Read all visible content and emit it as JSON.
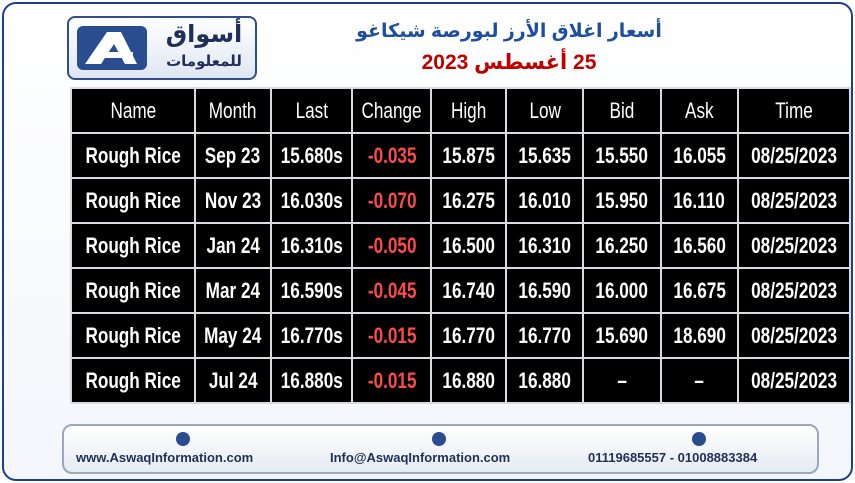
{
  "header": {
    "logo_name": "أسواق",
    "logo_sub": "للمعلومات",
    "title": "أسعار اغلاق الأرز لبورصة شيكاغو",
    "date": "25 أغسطس 2023"
  },
  "table": {
    "columns": [
      "Name",
      "Month",
      "Last",
      "Change",
      "High",
      "Low",
      "Bid",
      "Ask",
      "Time"
    ],
    "rows": [
      [
        "Rough Rice",
        "Sep 23",
        "15.680s",
        "-0.035",
        "15.875",
        "15.635",
        "15.550",
        "16.055",
        "08/25/2023"
      ],
      [
        "Rough Rice",
        "Nov 23",
        "16.030s",
        "-0.070",
        "16.275",
        "16.010",
        "15.950",
        "16.110",
        "08/25/2023"
      ],
      [
        "Rough Rice",
        "Jan 24",
        "16.310s",
        "-0.050",
        "16.500",
        "16.310",
        "16.250",
        "16.560",
        "08/25/2023"
      ],
      [
        "Rough Rice",
        "Mar 24",
        "16.590s",
        "-0.045",
        "16.740",
        "16.590",
        "16.000",
        "16.675",
        "08/25/2023"
      ],
      [
        "Rough Rice",
        "May 24",
        "16.770s",
        "-0.015",
        "16.770",
        "16.770",
        "15.690",
        "18.690",
        "08/25/2023"
      ],
      [
        "Rough Rice",
        "Jul 24",
        "16.880s",
        "-0.015",
        "16.880",
        "16.880",
        "–",
        "–",
        "08/25/2023"
      ]
    ]
  },
  "footer": {
    "website": "www.AswaqInformation.com",
    "email": "Info@AswaqInformation.com",
    "phones": "01119685557 - 01008883384"
  }
}
